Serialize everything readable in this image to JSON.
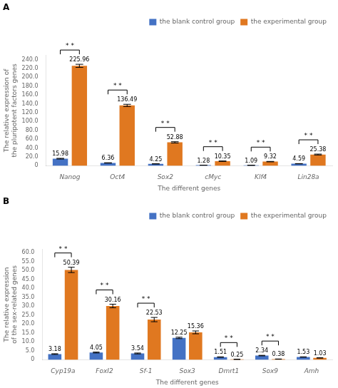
{
  "chart_data": [
    {
      "type": "bar",
      "title": "A",
      "categories": [
        "Nanog",
        "Oct4",
        "Sox2",
        "cMyc",
        "Klf4",
        "Lin28a"
      ],
      "series": [
        {
          "name": "the blank control group",
          "color": "#4472C4",
          "values": [
            15.98,
            6.36,
            4.25,
            1.28,
            1.09,
            4.59
          ],
          "errors": [
            0.8,
            0.4,
            0.3,
            0.1,
            0.1,
            0.3
          ]
        },
        {
          "name": "the experimental group",
          "color": "#E07820",
          "values": [
            225.96,
            136.49,
            52.88,
            10.35,
            9.32,
            25.38
          ],
          "errors": [
            3.5,
            2.5,
            1.5,
            0.5,
            0.5,
            1.0
          ]
        }
      ],
      "xlabel": "The different genes",
      "ylabel": "The relative expression of the pluripotent factors genes",
      "ylim": [
        0,
        250
      ],
      "yticks": [
        0,
        {
          "value": 20,
          "label": "20.0"
        },
        {
          "value": 40,
          "label": "40.0"
        },
        {
          "value": 60,
          "label": "60.0"
        },
        {
          "value": 80,
          "label": "80.0"
        },
        {
          "value": 100,
          "label": "100.0"
        },
        {
          "value": 120,
          "label": "120.0"
        },
        {
          "value": 140,
          "label": "140.0"
        },
        {
          "value": 160,
          "label": "160.0"
        },
        {
          "value": 180,
          "label": "180.0"
        },
        {
          "value": 200,
          "label": "200.0"
        },
        {
          "value": 220,
          "label": "220.0"
        },
        {
          "value": 240,
          "label": "240.0"
        }
      ],
      "grid": false,
      "legend": "upper right",
      "data_labels": true,
      "annotations": [
        {
          "category": "Nanog",
          "text": "* *"
        },
        {
          "category": "Oct4",
          "text": "* *"
        },
        {
          "category": "Sox2",
          "text": "* *"
        },
        {
          "category": "cMyc",
          "text": "* *"
        },
        {
          "category": "Klf4",
          "text": "* *"
        },
        {
          "category": "Lin28a",
          "text": "* *"
        }
      ]
    },
    {
      "type": "bar",
      "title": "B",
      "categories": [
        "Cyp19a",
        "FoxI2",
        "Sf-1",
        "Sox3",
        "Dmrt1",
        "Sox9",
        "Amh"
      ],
      "series": [
        {
          "name": "the blank control group",
          "color": "#4472C4",
          "values": [
            3.18,
            4.05,
            3.54,
            12.25,
            1.51,
            2.34,
            1.53
          ],
          "errors": [
            0.2,
            0.25,
            0.25,
            0.4,
            0.12,
            0.15,
            0.1
          ]
        },
        {
          "name": "the experimental group",
          "color": "#E07820",
          "values": [
            50.39,
            30.16,
            22.53,
            15.36,
            0.25,
            0.38,
            1.03
          ],
          "errors": [
            1.5,
            1.0,
            1.2,
            0.8,
            0.05,
            0.05,
            0.1
          ]
        }
      ],
      "xlabel": "The different genes",
      "ylabel": "The relative expression of the sex-related genes",
      "ylim": [
        0,
        62
      ],
      "yticks": [
        0,
        {
          "value": 5,
          "label": "5.0"
        },
        {
          "value": 10,
          "label": "10.0"
        },
        {
          "value": 15,
          "label": "15.0"
        },
        {
          "value": 20,
          "label": "20.0"
        },
        {
          "value": 25,
          "label": "25.0"
        },
        {
          "value": 30,
          "label": "30.0"
        },
        {
          "value": 35,
          "label": "35.0"
        },
        {
          "value": 40,
          "label": "40.0"
        },
        {
          "value": 45,
          "label": "45.0"
        },
        {
          "value": 50,
          "label": "50.0"
        },
        {
          "value": 55,
          "label": "55.0"
        },
        {
          "value": 60,
          "label": "60.0"
        }
      ],
      "grid": false,
      "legend": "upper right",
      "data_labels": true,
      "annotations": [
        {
          "category": "Cyp19a",
          "text": "* *"
        },
        {
          "category": "FoxI2",
          "text": "* *"
        },
        {
          "category": "Sf-1",
          "text": "* *"
        },
        {
          "category": "Dmrt1",
          "text": "* *"
        },
        {
          "category": "Sox9",
          "text": "* *"
        }
      ]
    }
  ]
}
